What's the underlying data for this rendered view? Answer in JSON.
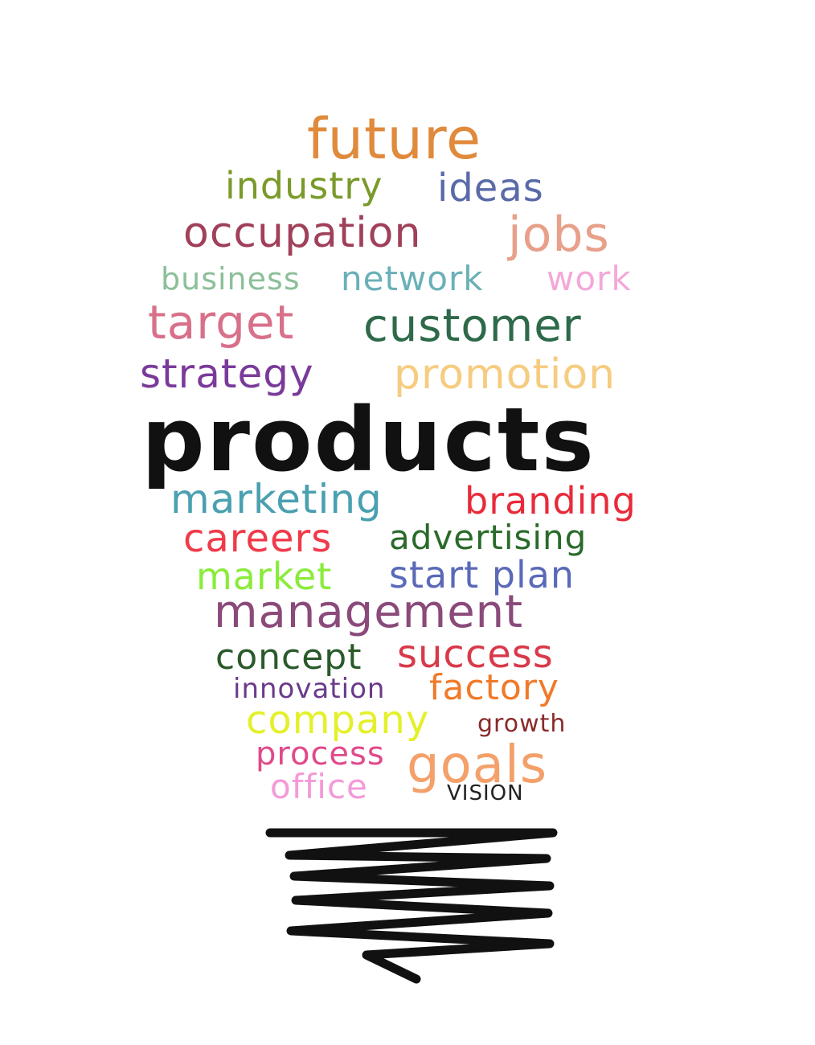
{
  "words": {
    "future": "future",
    "industry": "industry",
    "ideas": "ideas",
    "occupation": "occupation",
    "jobs": "jobs",
    "business": "business",
    "network": "network",
    "work": "work",
    "target": "target",
    "customer": "customer",
    "strategy": "strategy",
    "promotion": "promotion",
    "products": "products",
    "marketing": "marketing",
    "branding": "branding",
    "careers": "careers",
    "advertising": "advertising",
    "market": "market",
    "start_plan": "start plan",
    "management": "management",
    "concept": "concept",
    "success": "success",
    "innovation": "innovation",
    "factory": "factory",
    "company": "company",
    "growth": "growth",
    "process": "process",
    "goals": "goals",
    "office": "office",
    "vision": "VISION"
  },
  "colors": {
    "future": "#e08a3c",
    "industry": "#7a9a2a",
    "ideas": "#5a6aa8",
    "occupation": "#a0405a",
    "jobs": "#e8a08a",
    "business": "#8cbf9a",
    "network": "#6ab0b8",
    "work": "#f4a8d8",
    "target": "#d8708a",
    "customer": "#2e6a4a",
    "strategy": "#7a3a9a",
    "promotion": "#f6cc80",
    "products": "#111111",
    "marketing": "#4aa0b0",
    "branding": "#e82a3a",
    "careers": "#f03a4a",
    "advertising": "#2a6a2a",
    "market": "#8aec3a",
    "start_plan": "#5a6ab8",
    "management": "#8a4a7a",
    "concept": "#2a5a2a",
    "success": "#d83a4a",
    "innovation": "#6a3a8a",
    "factory": "#f07a2a",
    "company": "#e4f02a",
    "growth": "#8a2a2a",
    "process": "#e04a8a",
    "goals": "#f4a06a",
    "office": "#f49ad8",
    "vision": "#222222",
    "base": "#111111"
  },
  "icons": [
    "lightbulb-base-icon"
  ]
}
